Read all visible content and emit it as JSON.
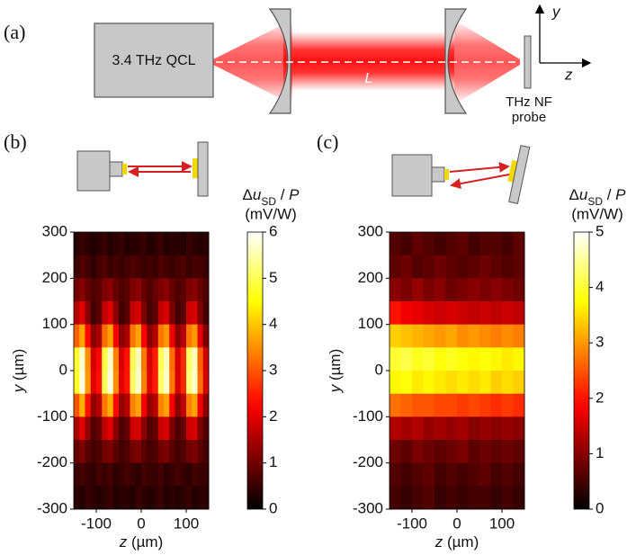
{
  "diagram": {
    "panel_label": "(a)",
    "source": "3.4 THz QCL",
    "length_label": "L",
    "probe_lines": [
      "THz NF",
      "probe"
    ],
    "axis_y": "y",
    "axis_z": "z"
  },
  "chart_data": [
    {
      "type": "heatmap",
      "panel_label": "(b)",
      "colormap": "hot",
      "xlabel": [
        "z",
        " (µm)"
      ],
      "ylabel": [
        "y",
        " (µm)"
      ],
      "xlim": [
        -150,
        150
      ],
      "ylim": [
        -300,
        300
      ],
      "xticks": [
        -100,
        0,
        100
      ],
      "yticks": [
        -300,
        -200,
        -100,
        0,
        100,
        200,
        300
      ],
      "x": [
        -143.75,
        -131.25,
        -118.75,
        -106.25,
        -93.75,
        -81.25,
        -68.75,
        -56.25,
        -43.75,
        -31.25,
        -18.75,
        -6.25,
        6.25,
        18.75,
        31.25,
        43.75,
        56.25,
        68.75,
        81.25,
        93.75,
        106.25,
        118.75,
        131.25,
        143.75
      ],
      "y": [
        275,
        225,
        175,
        125,
        75,
        25,
        -25,
        -75,
        -125,
        -175,
        -225,
        -275
      ],
      "values": [
        [
          0.3,
          0.5,
          0.4,
          0.3,
          0.4,
          0.5,
          0.3,
          0.4,
          0.5,
          0.3,
          0.4,
          0.4,
          0.5,
          0.3,
          0.4,
          0.5,
          0.3,
          0.4,
          0.4,
          0.3,
          0.5,
          0.4,
          0.3,
          0.4
        ],
        [
          0.5,
          0.7,
          0.6,
          0.4,
          0.6,
          0.7,
          0.5,
          0.6,
          0.5,
          0.6,
          0.7,
          0.6,
          0.5,
          0.6,
          0.5,
          0.7,
          0.6,
          0.5,
          0.6,
          0.7,
          0.5,
          0.6,
          0.6,
          0.5
        ],
        [
          1.0,
          1.2,
          0.9,
          0.7,
          0.8,
          1.1,
          1.2,
          0.9,
          0.7,
          0.8,
          1.1,
          1.2,
          0.9,
          0.7,
          0.9,
          1.1,
          1.2,
          0.9,
          0.7,
          0.8,
          1.1,
          1.2,
          0.9,
          0.7
        ],
        [
          1.6,
          2.0,
          1.2,
          0.6,
          0.8,
          1.7,
          2.0,
          1.2,
          0.6,
          0.8,
          1.7,
          1.9,
          1.1,
          0.6,
          0.8,
          1.7,
          1.9,
          1.1,
          0.6,
          0.8,
          1.8,
          1.9,
          1.1,
          0.6
        ],
        [
          3.1,
          3.7,
          2.3,
          1.2,
          1.5,
          3.2,
          3.7,
          2.2,
          1.2,
          1.5,
          3.3,
          3.7,
          2.2,
          1.2,
          1.6,
          3.3,
          3.6,
          2.1,
          1.2,
          1.6,
          3.3,
          3.6,
          2.0,
          1.1
        ],
        [
          4.8,
          5.7,
          3.5,
          1.9,
          2.3,
          4.9,
          5.7,
          3.4,
          1.9,
          2.4,
          5.0,
          5.6,
          3.3,
          1.9,
          2.5,
          5.0,
          5.6,
          3.2,
          1.9,
          2.6,
          5.1,
          5.6,
          3.1,
          1.8
        ],
        [
          4.7,
          5.8,
          3.6,
          2.0,
          2.4,
          5.0,
          5.8,
          3.5,
          2.0,
          2.4,
          5.1,
          5.7,
          3.4,
          2.0,
          2.5,
          5.1,
          5.7,
          3.3,
          1.9,
          2.6,
          5.2,
          5.7,
          3.2,
          1.9
        ],
        [
          3.0,
          3.8,
          2.4,
          1.3,
          1.6,
          3.3,
          3.8,
          2.3,
          1.3,
          1.6,
          3.4,
          3.7,
          2.2,
          1.3,
          1.6,
          3.4,
          3.7,
          2.2,
          1.2,
          1.7,
          3.4,
          3.7,
          2.1,
          1.2
        ],
        [
          1.5,
          2.0,
          1.3,
          0.7,
          0.9,
          1.7,
          2.0,
          1.2,
          0.7,
          0.9,
          1.8,
          1.9,
          1.2,
          0.7,
          0.9,
          1.8,
          1.9,
          1.1,
          0.7,
          0.9,
          1.8,
          1.9,
          1.1,
          0.7
        ],
        [
          0.9,
          1.1,
          0.8,
          0.6,
          0.7,
          1.0,
          1.1,
          0.8,
          0.6,
          0.7,
          1.0,
          1.1,
          0.8,
          0.6,
          0.7,
          1.0,
          1.1,
          0.8,
          0.6,
          0.7,
          1.0,
          1.1,
          0.8,
          0.6
        ],
        [
          0.5,
          0.6,
          0.5,
          0.4,
          0.6,
          0.5,
          0.6,
          0.4,
          0.5,
          0.6,
          0.5,
          0.4,
          0.6,
          0.5,
          0.5,
          0.6,
          0.4,
          0.5,
          0.6,
          0.5,
          0.4,
          0.6,
          0.5,
          0.5
        ],
        [
          0.4,
          0.3,
          0.5,
          0.4,
          0.3,
          0.4,
          0.5,
          0.3,
          0.4,
          0.4,
          0.3,
          0.5,
          0.4,
          0.3,
          0.4,
          0.5,
          0.3,
          0.4,
          0.3,
          0.4,
          0.5,
          0.3,
          0.4,
          0.4
        ]
      ],
      "colorbar": {
        "lim": [
          0,
          6
        ],
        "ticks": [
          0,
          1,
          2,
          3,
          4,
          5,
          6
        ],
        "label": [
          "Δ",
          "u",
          "SD",
          " / ",
          "P"
        ],
        "units": "(mV/W)"
      }
    },
    {
      "type": "heatmap",
      "panel_label": "(c)",
      "colormap": "hot",
      "xlabel": [
        "z",
        " (µm)"
      ],
      "ylabel": [
        "y",
        " (µm)"
      ],
      "xlim": [
        -150,
        150
      ],
      "ylim": [
        -300,
        300
      ],
      "xticks": [
        -100,
        0,
        100
      ],
      "yticks": [
        -300,
        -200,
        -100,
        0,
        100,
        200,
        300
      ],
      "x": [
        -137.5,
        -112.5,
        -87.5,
        -62.5,
        -37.5,
        -12.5,
        12.5,
        37.5,
        62.5,
        87.5,
        112.5,
        137.5
      ],
      "y": [
        275,
        225,
        175,
        125,
        75,
        25,
        -25,
        -75,
        -125,
        -175,
        -225,
        -275
      ],
      "values": [
        [
          0.6,
          0.5,
          0.7,
          0.6,
          0.5,
          0.6,
          0.7,
          0.5,
          0.6,
          0.6,
          0.5,
          0.7
        ],
        [
          0.7,
          0.8,
          0.6,
          0.7,
          0.8,
          0.7,
          0.6,
          0.7,
          0.8,
          0.7,
          0.6,
          0.7
        ],
        [
          1.0,
          0.9,
          1.1,
          0.9,
          1.0,
          0.8,
          0.9,
          1.0,
          0.9,
          1.0,
          0.9,
          0.8
        ],
        [
          2.0,
          1.8,
          1.7,
          1.6,
          1.5,
          1.6,
          1.5,
          1.4,
          1.5,
          1.4,
          1.5,
          1.4
        ],
        [
          3.4,
          3.3,
          3.2,
          3.1,
          3.0,
          3.1,
          2.9,
          3.0,
          2.9,
          2.8,
          2.9,
          2.8
        ],
        [
          4.0,
          4.1,
          3.9,
          4.0,
          3.8,
          3.9,
          3.8,
          3.7,
          3.8,
          3.7,
          3.6,
          3.7
        ],
        [
          3.7,
          3.8,
          3.6,
          3.7,
          3.6,
          3.5,
          3.6,
          3.5,
          3.6,
          3.4,
          3.5,
          3.4
        ],
        [
          2.7,
          2.6,
          2.5,
          2.5,
          2.4,
          2.4,
          2.3,
          2.4,
          2.3,
          2.2,
          2.3,
          2.2
        ],
        [
          1.3,
          1.2,
          1.3,
          1.1,
          1.2,
          1.1,
          1.2,
          1.0,
          1.1,
          1.0,
          1.1,
          1.0
        ],
        [
          0.8,
          0.7,
          0.9,
          0.8,
          0.7,
          0.8,
          0.9,
          0.7,
          0.8,
          0.7,
          0.8,
          0.7
        ],
        [
          0.6,
          0.5,
          0.6,
          0.7,
          0.5,
          0.6,
          0.5,
          0.6,
          0.7,
          0.5,
          0.6,
          0.5
        ],
        [
          0.5,
          0.4,
          0.5,
          0.6,
          0.4,
          0.5,
          0.4,
          0.5,
          0.5,
          0.4,
          0.5,
          0.4
        ]
      ],
      "colorbar": {
        "lim": [
          0,
          5
        ],
        "ticks": [
          0,
          1,
          2,
          3,
          4,
          5
        ],
        "label": [
          "Δ",
          "u",
          "SD",
          " / ",
          "P"
        ],
        "units": "(mV/W)"
      }
    }
  ]
}
